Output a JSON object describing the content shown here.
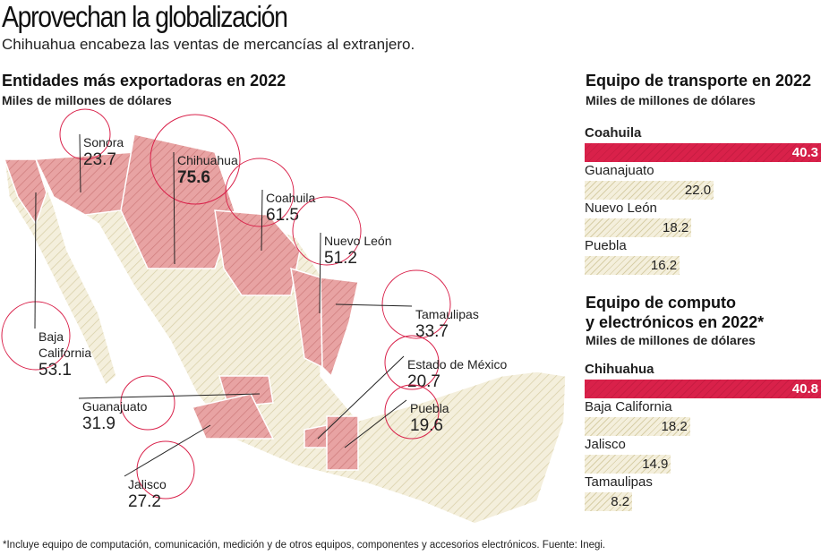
{
  "title": "Aprovechan la globalización",
  "subtitle": "Chihuahua encabeza las ventas de mercancías al extranjero.",
  "footnote": "*Incluye equipo de computación, comunicación, medición y de otros equipos, componentes y accesorios electrónicos. Fuente: Inegi.",
  "colors": {
    "highlight": "#d9214a",
    "map_highlight": "#e8a3a3",
    "map_base": "#f4efdc",
    "circle": "#d9214a"
  },
  "chart_data": [
    {
      "type": "map",
      "title": "Entidades más exportadoras en 2022",
      "unit": "Miles de millones de dólares",
      "states": [
        {
          "name": "Sonora",
          "value": "23.7"
        },
        {
          "name": "Chihuahua",
          "value": "75.6"
        },
        {
          "name": "Coahuila",
          "value": "61.5"
        },
        {
          "name": "Nuevo León",
          "value": "51.2"
        },
        {
          "name": "Tamaulipas",
          "value": "33.7"
        },
        {
          "name": "Baja California",
          "value": "53.1"
        },
        {
          "name": "Estado de México",
          "value": "20.7"
        },
        {
          "name": "Puebla",
          "value": "19.6"
        },
        {
          "name": "Guanajuato",
          "value": "31.9"
        },
        {
          "name": "Jalisco",
          "value": "27.2"
        }
      ]
    },
    {
      "type": "bar",
      "title": "Equipo de transporte en 2022",
      "unit": "Miles de millones de dólares",
      "categories": [
        "Coahuila",
        "Guanajuato",
        "Nuevo León",
        "Puebla"
      ],
      "values": [
        40.3,
        22.0,
        18.2,
        16.2
      ],
      "labels": [
        "40.3",
        "22.0",
        "18.2",
        "16.2"
      ]
    },
    {
      "type": "bar",
      "title": "Equipo de computo y electrónicos en 2022*",
      "title_lines": [
        "Equipo de computo",
        "y electrónicos en 2022*"
      ],
      "unit": "Miles de millones de dólares",
      "categories": [
        "Chihuahua",
        "Baja California",
        "Jalisco",
        "Tamaulipas"
      ],
      "values": [
        40.8,
        18.2,
        14.9,
        8.2
      ],
      "labels": [
        "40.8",
        "18.2",
        "14.9",
        "8.2"
      ]
    }
  ]
}
